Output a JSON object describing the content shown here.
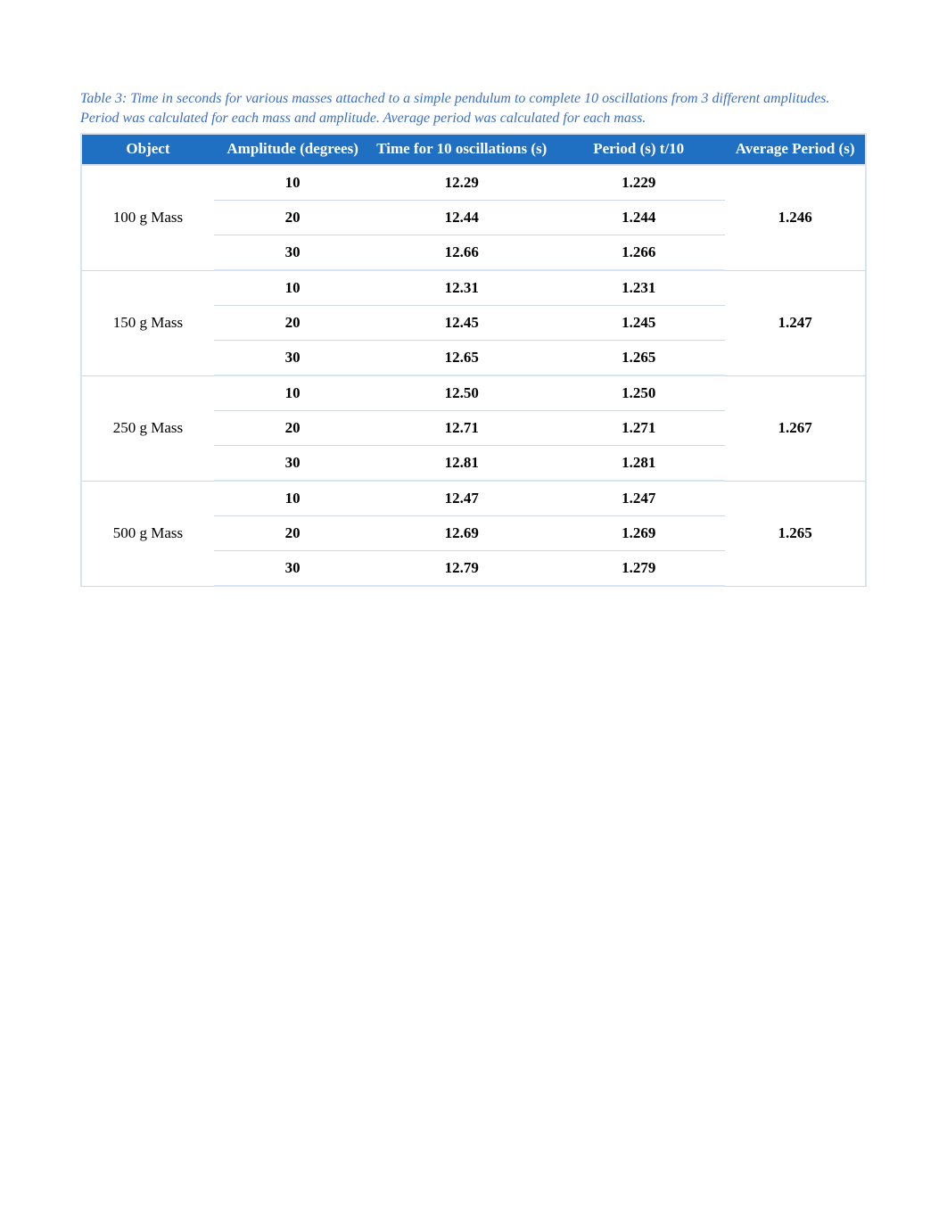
{
  "caption": "Table 3: Time in seconds for various masses attached to a simple pendulum to complete 10 oscillations from 3 different amplitudes. Period was calculated for each mass and amplitude. Average period was calculated for each mass.",
  "table": {
    "type": "table",
    "header_bg": "#1f6fc2",
    "header_fg": "#ffffff",
    "border_color": "#d6e4f4",
    "inner_rule_color": "#cfd9e6",
    "columns": [
      {
        "label": "Object",
        "width_pct": 17
      },
      {
        "label": "Amplitude (degrees)",
        "width_pct": 20
      },
      {
        "label": "Time for 10 oscillations (s)",
        "width_pct": 23
      },
      {
        "label": "Period (s) t/10",
        "width_pct": 22
      },
      {
        "label": "Average Period (s)",
        "width_pct": 18
      }
    ],
    "groups": [
      {
        "object": "100 g Mass",
        "average_period": "1.246",
        "rows": [
          {
            "amplitude": "10",
            "time10": "12.29",
            "period": "1.229"
          },
          {
            "amplitude": "20",
            "time10": "12.44",
            "period": "1.244"
          },
          {
            "amplitude": "30",
            "time10": "12.66",
            "period": "1.266"
          }
        ]
      },
      {
        "object": "150 g Mass",
        "average_period": "1.247",
        "rows": [
          {
            "amplitude": "10",
            "time10": "12.31",
            "period": "1.231"
          },
          {
            "amplitude": "20",
            "time10": "12.45",
            "period": "1.245"
          },
          {
            "amplitude": "30",
            "time10": "12.65",
            "period": "1.265"
          }
        ]
      },
      {
        "object": "250 g Mass",
        "average_period": "1.267",
        "rows": [
          {
            "amplitude": "10",
            "time10": "12.50",
            "period": "1.250"
          },
          {
            "amplitude": "20",
            "time10": "12.71",
            "period": "1.271"
          },
          {
            "amplitude": "30",
            "time10": "12.81",
            "period": "1.281"
          }
        ]
      },
      {
        "object": "500 g Mass",
        "average_period": "1.265",
        "rows": [
          {
            "amplitude": "10",
            "time10": "12.47",
            "period": "1.247"
          },
          {
            "amplitude": "20",
            "time10": "12.69",
            "period": "1.269"
          },
          {
            "amplitude": "30",
            "time10": "12.79",
            "period": "1.279"
          }
        ]
      }
    ]
  }
}
